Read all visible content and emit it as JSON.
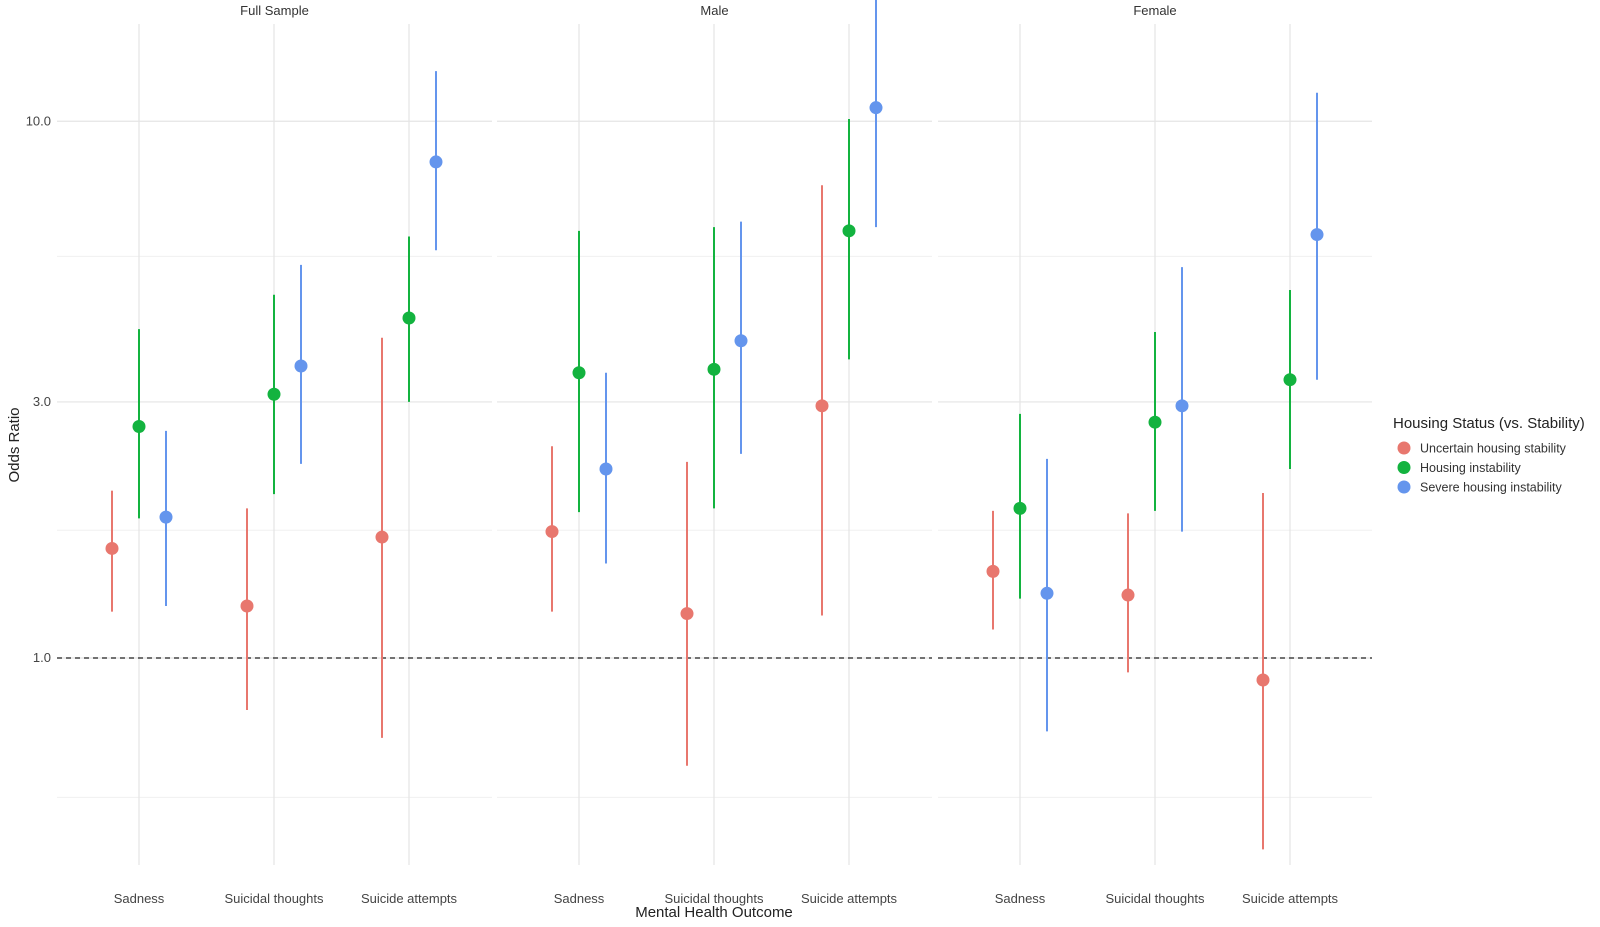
{
  "chart_data": {
    "type": "scatter",
    "subtype": "point-range (odds ratios with confidence intervals), faceted",
    "title": "",
    "xlabel": "Mental Health Outcome",
    "ylabel": "Odds Ratio",
    "y_scale": "log",
    "ylim": [
      0.4,
      18
    ],
    "y_ticks": [
      1.0,
      3.0,
      10.0
    ],
    "y_tick_labels": [
      "1.0",
      "3.0",
      "10.0"
    ],
    "reference_line": 1.0,
    "grid": true,
    "legend": {
      "title": "Housing Status (vs. Stability)",
      "position": "right"
    },
    "categories": [
      "Sadness",
      "Suicidal thoughts",
      "Suicide attempts"
    ],
    "series": [
      {
        "name": "Uncertain housing stability",
        "color": "#E8776E"
      },
      {
        "name": "Housing instability",
        "color": "#13B33F"
      },
      {
        "name": "Severe housing instability",
        "color": "#6495ED"
      }
    ],
    "facets": [
      {
        "label": "Full Sample",
        "data": [
          {
            "category": "Sadness",
            "series": "Uncertain housing stability",
            "or": 1.6,
            "lo": 1.22,
            "hi": 2.05
          },
          {
            "category": "Sadness",
            "series": "Housing instability",
            "or": 2.7,
            "lo": 1.82,
            "hi": 4.1
          },
          {
            "category": "Sadness",
            "series": "Severe housing instability",
            "or": 1.83,
            "lo": 1.25,
            "hi": 2.65
          },
          {
            "category": "Suicidal thoughts",
            "series": "Uncertain housing stability",
            "or": 1.25,
            "lo": 0.8,
            "hi": 1.9
          },
          {
            "category": "Suicidal thoughts",
            "series": "Housing instability",
            "or": 3.1,
            "lo": 2.02,
            "hi": 4.75
          },
          {
            "category": "Suicidal thoughts",
            "series": "Severe housing instability",
            "or": 3.5,
            "lo": 2.3,
            "hi": 5.4
          },
          {
            "category": "Suicide attempts",
            "series": "Uncertain housing stability",
            "or": 1.68,
            "lo": 0.71,
            "hi": 3.95
          },
          {
            "category": "Suicide attempts",
            "series": "Housing instability",
            "or": 4.3,
            "lo": 3.0,
            "hi": 6.1
          },
          {
            "category": "Suicide attempts",
            "series": "Severe housing instability",
            "or": 8.4,
            "lo": 5.75,
            "hi": 12.4
          }
        ]
      },
      {
        "label": "Male",
        "data": [
          {
            "category": "Sadness",
            "series": "Uncertain housing stability",
            "or": 1.72,
            "lo": 1.22,
            "hi": 2.48
          },
          {
            "category": "Sadness",
            "series": "Housing instability",
            "or": 3.4,
            "lo": 1.87,
            "hi": 6.25
          },
          {
            "category": "Sadness",
            "series": "Severe housing instability",
            "or": 2.25,
            "lo": 1.5,
            "hi": 3.4
          },
          {
            "category": "Suicidal thoughts",
            "series": "Uncertain housing stability",
            "or": 1.21,
            "lo": 0.63,
            "hi": 2.32
          },
          {
            "category": "Suicidal thoughts",
            "series": "Housing instability",
            "or": 3.45,
            "lo": 1.9,
            "hi": 6.35
          },
          {
            "category": "Suicidal thoughts",
            "series": "Severe housing instability",
            "or": 3.9,
            "lo": 2.4,
            "hi": 6.5
          },
          {
            "category": "Suicide attempts",
            "series": "Uncertain housing stability",
            "or": 2.95,
            "lo": 1.2,
            "hi": 7.6
          },
          {
            "category": "Suicide attempts",
            "series": "Housing instability",
            "or": 6.25,
            "lo": 3.6,
            "hi": 10.1
          },
          {
            "category": "Suicide attempts",
            "series": "Severe housing instability",
            "or": 10.6,
            "lo": 6.35,
            "hi": 17.0
          }
        ]
      },
      {
        "label": "Female",
        "data": [
          {
            "category": "Sadness",
            "series": "Uncertain housing stability",
            "or": 1.45,
            "lo": 1.13,
            "hi": 1.88
          },
          {
            "category": "Sadness",
            "series": "Housing instability",
            "or": 1.9,
            "lo": 1.29,
            "hi": 2.85
          },
          {
            "category": "Sadness",
            "series": "Severe housing instability",
            "or": 1.32,
            "lo": 0.73,
            "hi": 2.35
          },
          {
            "category": "Suicidal thoughts",
            "series": "Uncertain housing stability",
            "or": 1.31,
            "lo": 0.94,
            "hi": 1.86
          },
          {
            "category": "Suicidal thoughts",
            "series": "Housing instability",
            "or": 2.75,
            "lo": 1.88,
            "hi": 4.05
          },
          {
            "category": "Suicidal thoughts",
            "series": "Severe housing instability",
            "or": 2.95,
            "lo": 1.72,
            "hi": 5.35
          },
          {
            "category": "Suicide attempts",
            "series": "Uncertain housing stability",
            "or": 0.91,
            "lo": 0.44,
            "hi": 2.03
          },
          {
            "category": "Suicide attempts",
            "series": "Housing instability",
            "or": 3.3,
            "lo": 2.25,
            "hi": 4.85
          },
          {
            "category": "Suicide attempts",
            "series": "Severe housing instability",
            "or": 6.15,
            "lo": 3.3,
            "hi": 11.3
          }
        ]
      }
    ]
  }
}
